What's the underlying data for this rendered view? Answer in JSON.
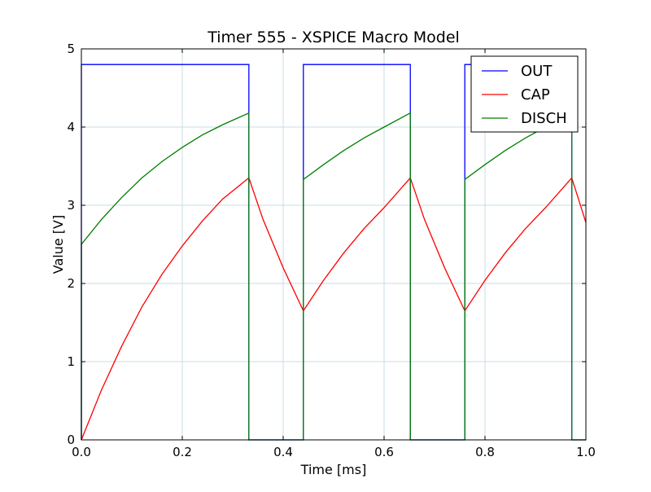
{
  "chart_data": {
    "type": "line",
    "title": "Timer 555 - XSPICE Macro Model",
    "xlabel": "Time  [ms]",
    "ylabel": "Value [V]",
    "xlim": [
      0.0,
      1.0
    ],
    "ylim": [
      0,
      5
    ],
    "xticks": [
      "0.0",
      "0.2",
      "0.4",
      "0.6",
      "0.8",
      "1.0"
    ],
    "yticks": [
      "0",
      "1",
      "2",
      "3",
      "4",
      "5"
    ],
    "grid": true,
    "legend_position": "top-right",
    "series": [
      {
        "name": "OUT",
        "color": "#0000ff",
        "x": [
          0.0,
          0.0,
          0.332,
          0.332,
          0.44,
          0.44,
          0.652,
          0.652,
          0.76,
          0.76,
          0.972,
          0.972,
          1.0
        ],
        "y": [
          0.0,
          4.8,
          4.8,
          0.0,
          0.0,
          4.8,
          4.8,
          0.0,
          0.0,
          4.8,
          4.8,
          0.0,
          0.0
        ]
      },
      {
        "name": "CAP",
        "color": "#ff0000",
        "x": [
          0.0,
          0.04,
          0.08,
          0.12,
          0.16,
          0.2,
          0.24,
          0.28,
          0.332,
          0.36,
          0.4,
          0.44,
          0.48,
          0.52,
          0.56,
          0.6,
          0.652,
          0.68,
          0.72,
          0.76,
          0.8,
          0.84,
          0.88,
          0.92,
          0.972,
          1.0
        ],
        "y": [
          0.0,
          0.64,
          1.2,
          1.7,
          2.12,
          2.48,
          2.8,
          3.08,
          3.35,
          2.82,
          2.2,
          1.65,
          2.04,
          2.39,
          2.7,
          2.97,
          3.35,
          2.82,
          2.2,
          1.65,
          2.04,
          2.39,
          2.7,
          2.97,
          3.35,
          2.78
        ]
      },
      {
        "name": "DISCH",
        "color": "#008000",
        "x": [
          0.0,
          0.0,
          0.04,
          0.08,
          0.12,
          0.16,
          0.2,
          0.24,
          0.28,
          0.332,
          0.332,
          0.44,
          0.44,
          0.48,
          0.52,
          0.56,
          0.6,
          0.652,
          0.652,
          0.76,
          0.76,
          0.8,
          0.84,
          0.88,
          0.92,
          0.972,
          0.972,
          1.0
        ],
        "y": [
          0.0,
          2.5,
          2.82,
          3.1,
          3.35,
          3.56,
          3.74,
          3.9,
          4.03,
          4.18,
          0.0,
          0.0,
          3.33,
          3.52,
          3.7,
          3.86,
          4.0,
          4.18,
          0.0,
          0.0,
          3.33,
          3.52,
          3.7,
          3.86,
          4.0,
          4.18,
          0.0,
          0.0
        ]
      }
    ]
  }
}
